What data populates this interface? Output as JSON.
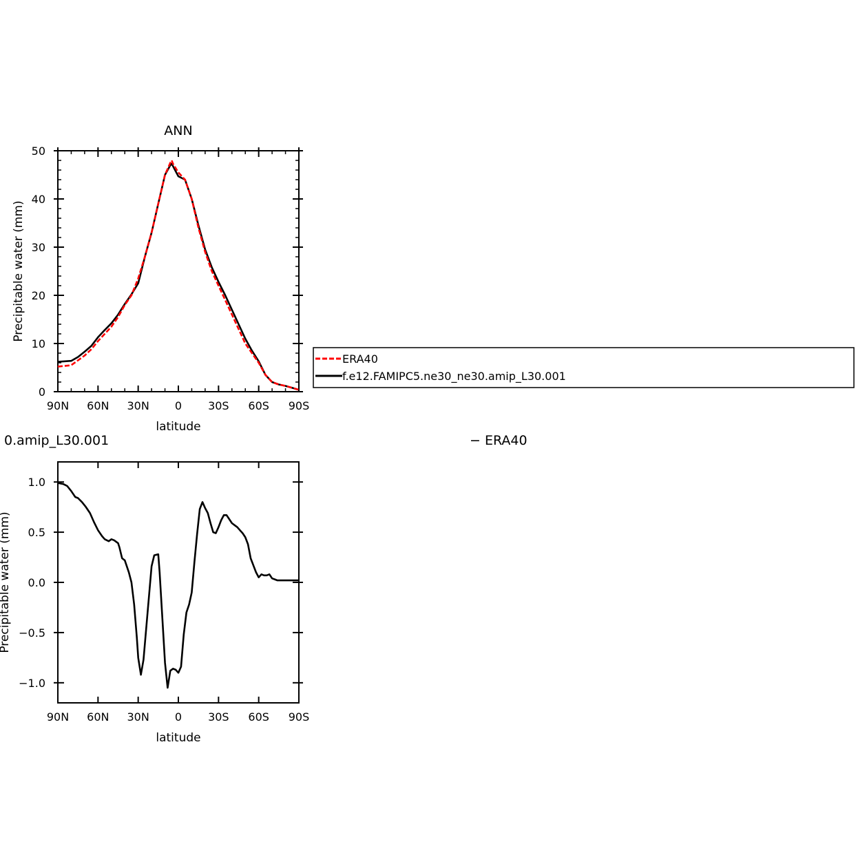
{
  "chart_data": [
    {
      "type": "line",
      "title": "ANN",
      "xlabel": "latitude",
      "ylabel": "Precipitable water (mm)",
      "xlim": [
        90,
        -90
      ],
      "ylim": [
        0,
        50
      ],
      "x_ticks": [
        90,
        60,
        30,
        0,
        -30,
        -60,
        -90
      ],
      "x_tick_labels": [
        "90N",
        "60N",
        "30N",
        "0",
        "30S",
        "60S",
        "90S"
      ],
      "y_ticks": [
        0,
        10,
        20,
        30,
        40,
        50
      ],
      "y_tick_labels": [
        "0",
        "10",
        "20",
        "30",
        "40",
        "50"
      ],
      "legend_position": "right",
      "series": [
        {
          "name": "ERA40",
          "color": "#ff0000",
          "dash": "dashed",
          "x": [
            90,
            80,
            75,
            70,
            65,
            60,
            55,
            50,
            45,
            40,
            35,
            30,
            25,
            20,
            15,
            10,
            6,
            5,
            4,
            0,
            -5,
            -10,
            -15,
            -20,
            -25,
            -30,
            -35,
            -40,
            -45,
            -50,
            -55,
            -60,
            -65,
            -70,
            -75,
            -80,
            -85,
            -90
          ],
          "y": [
            5.2,
            5.5,
            6.5,
            7.5,
            8.8,
            10.5,
            12,
            13.5,
            15.5,
            18,
            20,
            23.5,
            28,
            33,
            39,
            45,
            47.5,
            48,
            47.3,
            45.5,
            44,
            40,
            34,
            29,
            25,
            22,
            19,
            16,
            13,
            10,
            8,
            6,
            3.5,
            2,
            1.5,
            1.2,
            0.8,
            0.4
          ]
        },
        {
          "name": "f.e12.FAMIPC5.ne30_ne30.amip_L30.001",
          "color": "#000000",
          "dash": "solid",
          "x": [
            90,
            80,
            75,
            70,
            65,
            60,
            55,
            50,
            45,
            40,
            35,
            30,
            25,
            20,
            15,
            10,
            6,
            5,
            4,
            0,
            -5,
            -10,
            -15,
            -20,
            -25,
            -30,
            -35,
            -40,
            -45,
            -50,
            -55,
            -60,
            -65,
            -70,
            -75,
            -80,
            -85,
            -90
          ],
          "y": [
            6.2,
            6.4,
            7.2,
            8.3,
            9.5,
            11.3,
            12.8,
            14.2,
            16,
            18.2,
            20.2,
            22.5,
            28,
            33,
            39,
            45,
            47.0,
            47.3,
            46.8,
            44.7,
            44,
            40,
            34.5,
            29.5,
            25.8,
            22.8,
            20,
            17,
            14,
            11,
            8.5,
            6.3,
            3.5,
            2,
            1.5,
            1.2,
            0.8,
            0.4
          ]
        }
      ]
    },
    {
      "type": "line",
      "title": "",
      "title_fragment_left": "0.amip_L30.001",
      "title_fragment_right": "− ERA40",
      "xlabel": "latitude",
      "ylabel_fragment": "Precipitable water (mm)",
      "xlim": [
        90,
        -90
      ],
      "ylim": [
        -1.2,
        1.2
      ],
      "x_ticks": [
        90,
        60,
        30,
        0,
        -30,
        -60,
        -90
      ],
      "x_tick_labels": [
        "90N",
        "60N",
        "30N",
        "0",
        "30S",
        "60S",
        "90S"
      ],
      "y_ticks": [
        -1.0,
        -0.5,
        0.0,
        0.5,
        1.0
      ],
      "y_tick_labels": [
        "−1.0",
        "−0.5",
        "0.0",
        "0.5",
        "1.0"
      ],
      "series": [
        {
          "name": "",
          "color": "#000000",
          "dash": "solid",
          "x": [
            90,
            86,
            83,
            80,
            77,
            75,
            72,
            69,
            66,
            63,
            60,
            57,
            55,
            52,
            50,
            48,
            45,
            44,
            42,
            40,
            37,
            35,
            33,
            31,
            30,
            28,
            26,
            23,
            20,
            18,
            15,
            14,
            12,
            10,
            8,
            6,
            4,
            2,
            0,
            -2,
            -4,
            -6,
            -8,
            -10,
            -12,
            -14,
            -16,
            -18,
            -20,
            -22,
            -24,
            -26,
            -28,
            -30,
            -32,
            -34,
            -36,
            -38,
            -40,
            -42,
            -44,
            -46,
            -48,
            -50,
            -52,
            -54,
            -56,
            -58,
            -60,
            -62,
            -64,
            -66,
            -68,
            -70,
            -72,
            -74,
            -76,
            -78,
            -80,
            -82,
            -84,
            -86,
            -88,
            -90
          ],
          "y": [
            0.99,
            0.98,
            0.96,
            0.91,
            0.85,
            0.84,
            0.8,
            0.75,
            0.69,
            0.6,
            0.52,
            0.46,
            0.43,
            0.41,
            0.43,
            0.42,
            0.39,
            0.35,
            0.24,
            0.22,
            0.1,
            0.0,
            -0.22,
            -0.55,
            -0.75,
            -0.92,
            -0.77,
            -0.3,
            0.16,
            0.27,
            0.28,
            0.1,
            -0.35,
            -0.8,
            -1.05,
            -0.88,
            -0.86,
            -0.87,
            -0.9,
            -0.84,
            -0.52,
            -0.3,
            -0.22,
            -0.1,
            0.2,
            0.48,
            0.73,
            0.8,
            0.74,
            0.69,
            0.59,
            0.5,
            0.49,
            0.55,
            0.62,
            0.67,
            0.67,
            0.63,
            0.59,
            0.57,
            0.55,
            0.52,
            0.49,
            0.45,
            0.38,
            0.24,
            0.17,
            0.1,
            0.05,
            0.08,
            0.07,
            0.07,
            0.08,
            0.04,
            0.03,
            0.02,
            0.02,
            0.02,
            0.02,
            0.02,
            0.02,
            0.02,
            0.02,
            0.02
          ]
        }
      ]
    }
  ]
}
